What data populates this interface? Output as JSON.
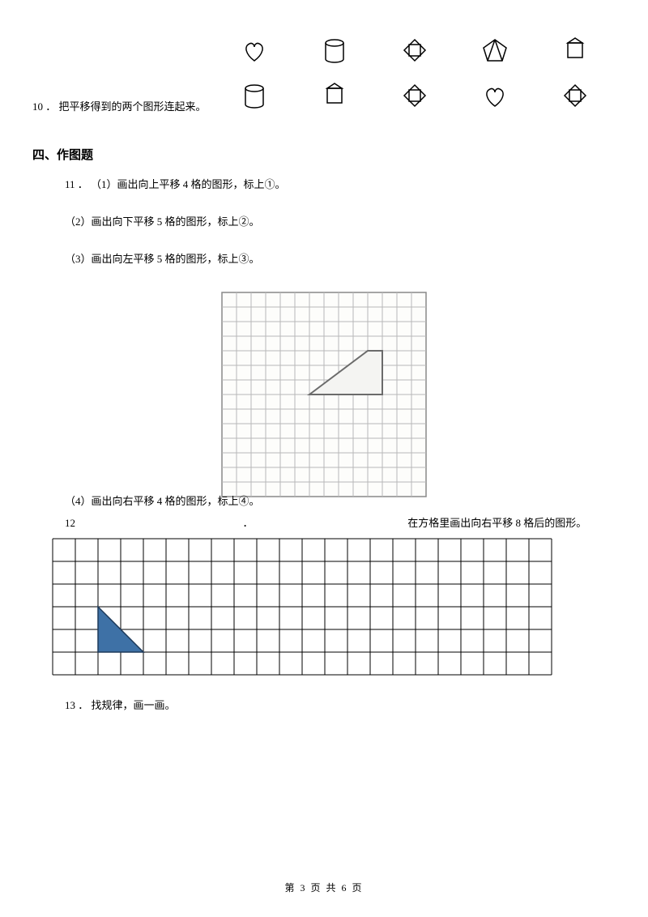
{
  "q10": {
    "number": "10",
    "dot": "．",
    "text": "把平移得到的两个图形连起来。",
    "icon_stroke": "#000000",
    "row1": [
      "heart",
      "cylinder",
      "diamond-sq",
      "pentagon-fold",
      "square-flag"
    ],
    "row2": [
      "cylinder",
      "square-flag",
      "diamond-sq",
      "heart",
      "diamond-sq"
    ]
  },
  "section4": {
    "title": "四、作图题"
  },
  "q11": {
    "number": "11",
    "dot": "．",
    "p1": "（1）画出向上平移 4 格的图形，标上①。",
    "p2": "（2）画出向下平移 5 格的图形，标上②。",
    "p3": "（3）画出向左平移 5 格的图形，标上③。",
    "p4": "（4）画出向右平移 4 格的图形，标上④。",
    "grid": {
      "cols": 14,
      "rows": 14,
      "cell": 18,
      "line_color": "#b8b8b8",
      "border_color": "#888888",
      "paper_bg": "#fdfdfb",
      "shape_stroke": "#6b6b6b",
      "shape_fill": "#f4f4f2",
      "trapezoid_points": [
        [
          6,
          7
        ],
        [
          10,
          4
        ],
        [
          11,
          4
        ],
        [
          11,
          7
        ]
      ]
    }
  },
  "q12": {
    "number": "12",
    "dot": "．",
    "spacer": " ",
    "text": "在方格里画出向右平移 8 格后的图形。",
    "grid": {
      "cols": 22,
      "rows": 6,
      "cell": 28,
      "line_color": "#000000",
      "triangle_fill": "#3e71a6",
      "triangle_stroke": "#1e3a5a",
      "triangle_points": [
        [
          2,
          5
        ],
        [
          2,
          3
        ],
        [
          4,
          5
        ]
      ]
    }
  },
  "q13": {
    "number": "13",
    "dot": "．",
    "text": "找规律，画一画。"
  },
  "footer": {
    "text": "第 3 页 共 6 页"
  }
}
